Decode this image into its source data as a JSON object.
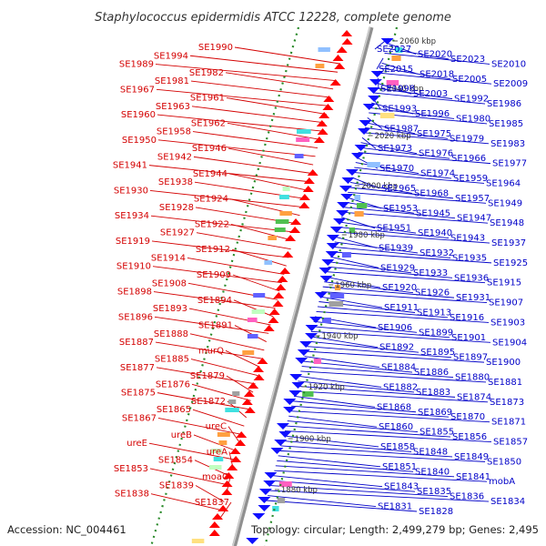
{
  "title": "Staphylococcus epidermidis ATCC 12228, complete genome",
  "accession": "Accession: NC_004461",
  "topology": "Topology: circular; Length: 2,499,279 bp; Genes: 2,495",
  "colors": {
    "left_label": "#d40000",
    "right_label": "#0000c8",
    "plus_strand": "#ff0000",
    "minus_strand": "#1010ff",
    "backbone": "#909090",
    "gc_dots": "#2a8a2a"
  },
  "scale_marks": [
    {
      "text": "2060 kbp"
    },
    {
      "text": "2040 kbp"
    },
    {
      "text": "2020 kbp"
    },
    {
      "text": "2000 kbp"
    },
    {
      "text": "1980 kbp"
    },
    {
      "text": "1960 kbp"
    },
    {
      "text": "1940 kbp"
    },
    {
      "text": "1920 kbp"
    },
    {
      "text": "1900 kbp"
    },
    {
      "text": "1880 kbp"
    }
  ],
  "left_labels": [
    "SE1990",
    "SE1994",
    "SE1989",
    "SE1982",
    "SE1981",
    "SE1967",
    "SE1961",
    "SE1963",
    "SE1960",
    "SE1962",
    "SE1958",
    "SE1950",
    "SE1946",
    "SE1942",
    "SE1941",
    "SE1944",
    "SE1938",
    "SE1930",
    "SE1924",
    "SE1928",
    "SE1934",
    "SE1922",
    "SE1927",
    "SE1919",
    "SE1912",
    "SE1914",
    "SE1910",
    "SE1909",
    "SE1908",
    "SE1898",
    "SE1894",
    "SE1893",
    "SE1896",
    "SE1891",
    "SE1888",
    "SE1887",
    "murQ",
    "SE1885",
    "SE1877",
    "SE1879",
    "SE1876",
    "SE1875",
    "SE1872",
    "SE1865",
    "SE1867",
    "ureC",
    "ureB",
    "ureE",
    "ureA",
    "SE1854",
    "SE1853",
    "moaC",
    "SE1839",
    "SE1838",
    "SE1837"
  ],
  "right_labels": [
    "SE2027",
    "SE2020",
    "SE2023",
    "SE2010",
    "SE2015",
    "SE2018",
    "SE2005",
    "SE2009",
    "SE1998",
    "SE2003",
    "SE1992",
    "SE1986",
    "SE1993",
    "SE1996",
    "SE1980",
    "SE1985",
    "SE1987",
    "SE1975",
    "SE1979",
    "SE1983",
    "SE1973",
    "SE1976",
    "SE1966",
    "SE1977",
    "SE1970",
    "SE1974",
    "SE1959",
    "SE1964",
    "SE1965",
    "SE1968",
    "SE1957",
    "SE1949",
    "SE1953",
    "SE1945",
    "SE1947",
    "SE1948",
    "SE1951",
    "SE1940",
    "SE1943",
    "SE1937",
    "SE1939",
    "SE1932",
    "SE1935",
    "SE1925",
    "SE1929",
    "SE1933",
    "SE1936",
    "SE1915",
    "SE1920",
    "SE1926",
    "SE1931",
    "SE1907",
    "SE1911",
    "SE1913",
    "SE1916",
    "SE1903",
    "SE1906",
    "SE1899",
    "SE1901",
    "SE1904",
    "SE1892",
    "SE1895",
    "SE1897",
    "SE1900",
    "SE1884",
    "SE1886",
    "SE1880",
    "SE1881",
    "SE1882",
    "SE1883",
    "SE1874",
    "SE1873",
    "SE1868",
    "SE1869",
    "SE1870",
    "SE1871",
    "SE1860",
    "SE1855",
    "SE1856",
    "SE1857",
    "SE1858",
    "SE1848",
    "SE1849",
    "SE1850",
    "SE1851",
    "SE1840",
    "SE1841",
    "mobA",
    "SE1843",
    "SE1835",
    "SE1836",
    "SE1834",
    "SE1831",
    "SE1828"
  ]
}
